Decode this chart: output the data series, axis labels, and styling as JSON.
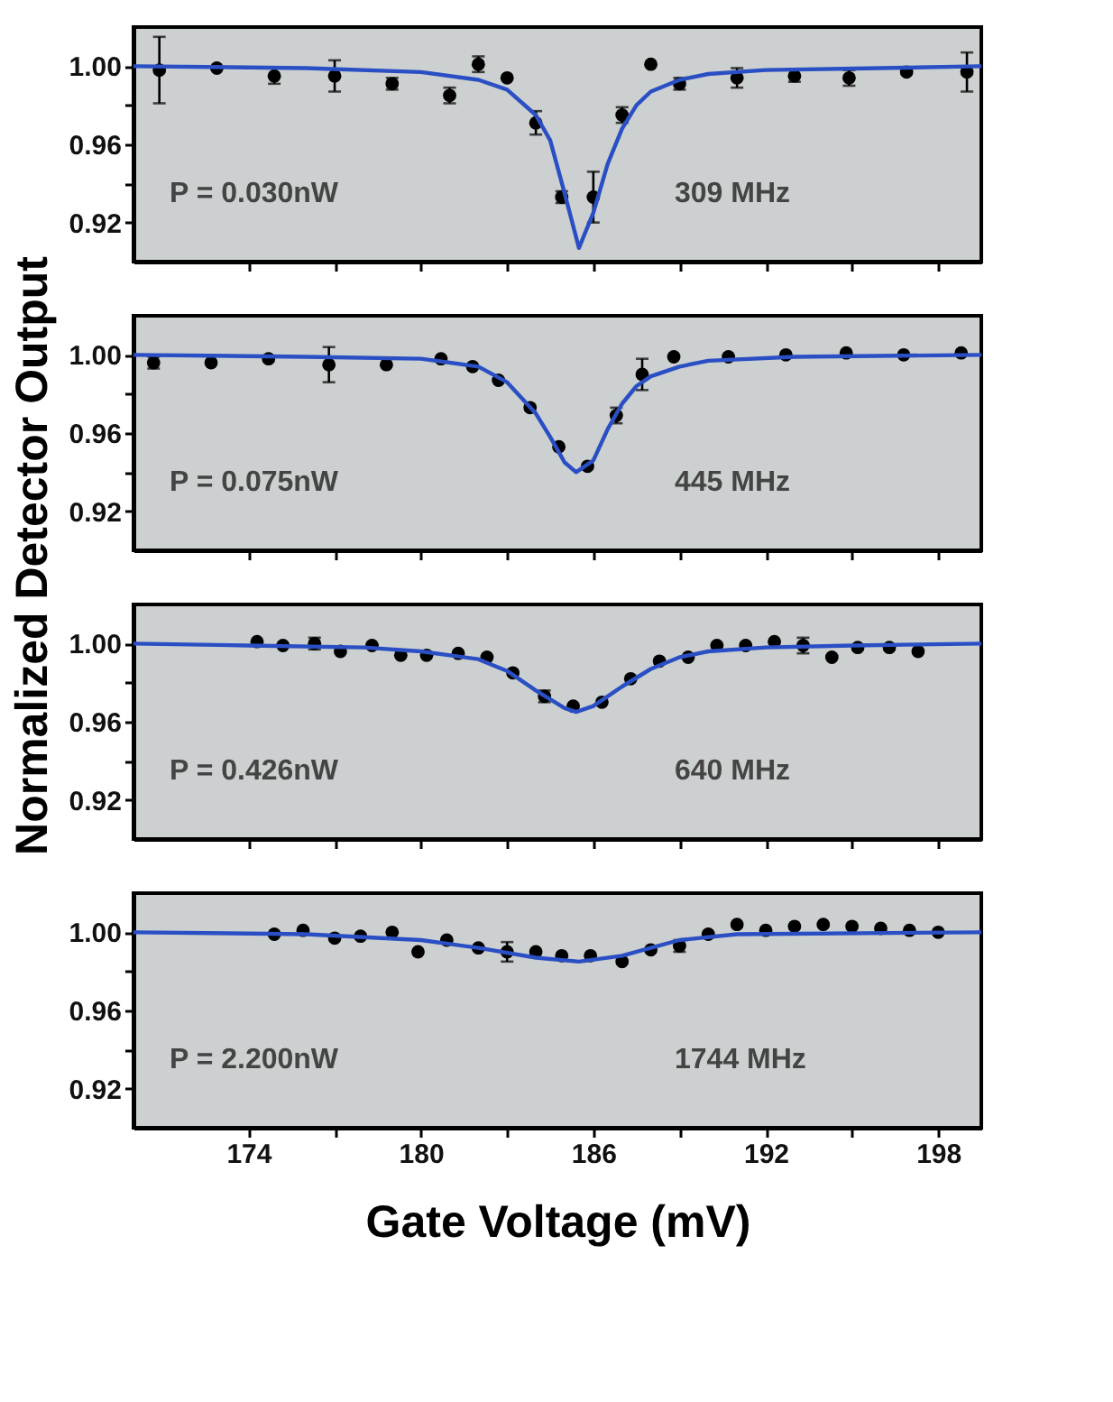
{
  "chart_data": [
    {
      "type": "scatter",
      "ylabel": "Normalized Detector Output",
      "annotations": [
        "P = 0.030nW",
        "309 MHz"
      ],
      "xlim": [
        170,
        199.5
      ],
      "ylim": [
        0.9,
        1.02
      ],
      "xticks": [
        {
          "value": 174,
          "label": null
        },
        {
          "value": 177,
          "label": null
        },
        {
          "value": 180,
          "label": null
        },
        {
          "value": 183,
          "label": null
        },
        {
          "value": 186,
          "label": null
        },
        {
          "value": 189,
          "label": null
        },
        {
          "value": 192,
          "label": null
        },
        {
          "value": 195,
          "label": null
        },
        {
          "value": 198,
          "label": null
        }
      ],
      "yticks": [
        {
          "value": 0.92,
          "label": "0.92"
        },
        {
          "value": 0.94,
          "label": null
        },
        {
          "value": 0.96,
          "label": "0.96"
        },
        {
          "value": 0.98,
          "label": null
        },
        {
          "value": 1.0,
          "label": "1.00"
        }
      ],
      "tick_labels": "y",
      "grid": false,
      "series": [
        {
          "type": "scatter",
          "color": "#000000",
          "marker": "circle",
          "x": [
            170.9,
            172.9,
            174.9,
            177.0,
            179.0,
            181.0,
            182.0,
            183.0,
            184.0,
            184.9,
            186.0,
            187.0,
            188.0,
            189.0,
            191.0,
            193.0,
            194.9,
            196.9,
            199.0
          ],
          "values": [
            0.998,
            0.999,
            0.995,
            0.995,
            0.991,
            0.985,
            1.001,
            0.994,
            0.971,
            0.933,
            0.933,
            0.975,
            1.001,
            0.991,
            0.994,
            0.995,
            0.994,
            0.997,
            0.997
          ],
          "errors": [
            0.017,
            null,
            0.004,
            0.008,
            0.003,
            0.004,
            0.004,
            null,
            0.006,
            0.003,
            0.013,
            0.004,
            null,
            0.003,
            0.005,
            0.003,
            0.004,
            null,
            0.01
          ]
        },
        {
          "type": "line",
          "color": "#2a4fc4",
          "line_style": "solid",
          "marker": "none",
          "x": [
            170,
            176,
            180,
            182,
            183,
            184,
            184.5,
            185,
            185.5,
            186,
            186.5,
            187,
            187.5,
            188,
            189,
            190,
            192,
            196,
            199.5
          ],
          "values": [
            1.0,
            0.999,
            0.997,
            0.993,
            0.988,
            0.975,
            0.962,
            0.935,
            0.907,
            0.925,
            0.95,
            0.968,
            0.98,
            0.987,
            0.993,
            0.996,
            0.998,
            0.999,
            1.0
          ]
        }
      ]
    },
    {
      "type": "scatter",
      "annotations": [
        "P = 0.075nW",
        "445 MHz"
      ],
      "xlim": [
        170,
        199.5
      ],
      "ylim": [
        0.9,
        1.02
      ],
      "xticks": [
        {
          "value": 174,
          "label": null
        },
        {
          "value": 177,
          "label": null
        },
        {
          "value": 180,
          "label": null
        },
        {
          "value": 183,
          "label": null
        },
        {
          "value": 186,
          "label": null
        },
        {
          "value": 189,
          "label": null
        },
        {
          "value": 192,
          "label": null
        },
        {
          "value": 195,
          "label": null
        },
        {
          "value": 198,
          "label": null
        }
      ],
      "yticks": [
        {
          "value": 0.92,
          "label": "0.92"
        },
        {
          "value": 0.94,
          "label": null
        },
        {
          "value": 0.96,
          "label": "0.96"
        },
        {
          "value": 0.98,
          "label": null
        },
        {
          "value": 1.0,
          "label": "1.00"
        }
      ],
      "tick_labels": "y",
      "grid": false,
      "series": [
        {
          "type": "scatter",
          "color": "#000000",
          "marker": "circle",
          "x": [
            170.7,
            172.7,
            174.7,
            176.8,
            178.8,
            180.7,
            181.8,
            182.7,
            183.8,
            184.8,
            185.8,
            186.8,
            187.7,
            188.8,
            190.7,
            192.7,
            194.8,
            196.8,
            198.8
          ],
          "values": [
            0.996,
            0.996,
            0.998,
            0.995,
            0.995,
            0.998,
            0.994,
            0.987,
            0.973,
            0.953,
            0.943,
            0.969,
            0.99,
            0.999,
            0.999,
            1.0,
            1.001,
            1.0,
            1.001
          ],
          "errors": [
            0.003,
            null,
            null,
            0.009,
            null,
            null,
            null,
            null,
            null,
            null,
            null,
            0.004,
            0.008,
            null,
            null,
            null,
            null,
            null,
            null
          ]
        },
        {
          "type": "line",
          "color": "#2a4fc4",
          "line_style": "solid",
          "marker": "none",
          "x": [
            170,
            176,
            180,
            182,
            183,
            184,
            184.5,
            185,
            185.4,
            186,
            186.5,
            187,
            187.5,
            188,
            189,
            190,
            193,
            199.5
          ],
          "values": [
            1.0,
            0.999,
            0.998,
            0.994,
            0.986,
            0.97,
            0.958,
            0.945,
            0.94,
            0.946,
            0.962,
            0.975,
            0.984,
            0.989,
            0.994,
            0.997,
            0.999,
            1.0
          ]
        }
      ]
    },
    {
      "type": "scatter",
      "annotations": [
        "P = 0.426nW",
        "640 MHz"
      ],
      "xlim": [
        170,
        199.5
      ],
      "ylim": [
        0.9,
        1.02
      ],
      "xticks": [
        {
          "value": 174,
          "label": null
        },
        {
          "value": 177,
          "label": null
        },
        {
          "value": 180,
          "label": null
        },
        {
          "value": 183,
          "label": null
        },
        {
          "value": 186,
          "label": null
        },
        {
          "value": 189,
          "label": null
        },
        {
          "value": 192,
          "label": null
        },
        {
          "value": 195,
          "label": null
        },
        {
          "value": 198,
          "label": null
        }
      ],
      "yticks": [
        {
          "value": 0.92,
          "label": "0.92"
        },
        {
          "value": 0.94,
          "label": null
        },
        {
          "value": 0.96,
          "label": "0.96"
        },
        {
          "value": 0.98,
          "label": null
        },
        {
          "value": 1.0,
          "label": "1.00"
        }
      ],
      "tick_labels": "y",
      "grid": false,
      "series": [
        {
          "type": "scatter",
          "color": "#000000",
          "marker": "circle",
          "x": [
            174.3,
            175.2,
            176.3,
            177.2,
            178.3,
            179.3,
            180.2,
            181.3,
            182.3,
            183.2,
            184.3,
            185.3,
            186.3,
            187.3,
            188.3,
            189.3,
            190.3,
            191.3,
            192.3,
            193.3,
            194.3,
            195.2,
            196.3,
            197.3
          ],
          "values": [
            1.001,
            0.999,
            1.0,
            0.996,
            0.999,
            0.994,
            0.994,
            0.995,
            0.993,
            0.985,
            0.973,
            0.968,
            0.97,
            0.982,
            0.991,
            0.993,
            0.999,
            0.999,
            1.001,
            0.999,
            0.993,
            0.998,
            0.998,
            0.996
          ],
          "errors": [
            null,
            null,
            0.003,
            null,
            null,
            null,
            null,
            null,
            null,
            null,
            0.003,
            null,
            null,
            null,
            null,
            null,
            null,
            null,
            null,
            0.004,
            null,
            null,
            null,
            null
          ]
        },
        {
          "type": "line",
          "color": "#2a4fc4",
          "line_style": "solid",
          "marker": "none",
          "x": [
            170,
            174,
            178,
            180,
            182,
            183,
            184,
            185,
            185.4,
            186,
            187,
            188,
            189,
            190,
            192,
            195,
            199.5
          ],
          "values": [
            1.0,
            0.999,
            0.998,
            0.996,
            0.992,
            0.986,
            0.976,
            0.967,
            0.965,
            0.968,
            0.978,
            0.987,
            0.993,
            0.996,
            0.998,
            0.999,
            1.0
          ]
        }
      ]
    },
    {
      "type": "scatter",
      "xlabel": "Gate Voltage (mV)",
      "annotations": [
        "P = 2.200nW",
        "1744 MHz"
      ],
      "xlim": [
        170,
        199.5
      ],
      "ylim": [
        0.9,
        1.02
      ],
      "xticks": [
        {
          "value": 174,
          "label": "174"
        },
        {
          "value": 177,
          "label": null
        },
        {
          "value": 180,
          "label": "180"
        },
        {
          "value": 183,
          "label": null
        },
        {
          "value": 186,
          "label": "186"
        },
        {
          "value": 189,
          "label": null
        },
        {
          "value": 192,
          "label": "192"
        },
        {
          "value": 195,
          "label": null
        },
        {
          "value": 198,
          "label": "198"
        }
      ],
      "yticks": [
        {
          "value": 0.92,
          "label": "0.92"
        },
        {
          "value": 0.94,
          "label": null
        },
        {
          "value": 0.96,
          "label": "0.96"
        },
        {
          "value": 0.98,
          "label": null
        },
        {
          "value": 1.0,
          "label": "1.00"
        }
      ],
      "grid": false,
      "series": [
        {
          "type": "scatter",
          "color": "#000000",
          "marker": "circle",
          "x": [
            174.9,
            175.9,
            177.0,
            177.9,
            179.0,
            179.9,
            180.9,
            182.0,
            183.0,
            184.0,
            184.9,
            185.9,
            187.0,
            188.0,
            189.0,
            190.0,
            191.0,
            192.0,
            193.0,
            194.0,
            195.0,
            196.0,
            197.0,
            198.0
          ],
          "values": [
            0.999,
            1.001,
            0.997,
            0.998,
            1.0,
            0.99,
            0.996,
            0.992,
            0.99,
            0.99,
            0.988,
            0.988,
            0.985,
            0.991,
            0.993,
            0.999,
            1.004,
            1.001,
            1.003,
            1.004,
            1.003,
            1.002,
            1.001,
            1.0
          ],
          "errors": [
            null,
            null,
            null,
            null,
            null,
            null,
            null,
            null,
            0.005,
            null,
            null,
            null,
            null,
            null,
            0.003,
            null,
            null,
            null,
            null,
            null,
            null,
            null,
            null,
            null
          ]
        },
        {
          "type": "line",
          "color": "#2a4fc4",
          "line_style": "solid",
          "marker": "none",
          "x": [
            170,
            176,
            180,
            182,
            184,
            185.5,
            187,
            188,
            189,
            191,
            199.5
          ],
          "values": [
            1.0,
            0.999,
            0.996,
            0.992,
            0.987,
            0.985,
            0.988,
            0.992,
            0.996,
            0.999,
            1.0
          ]
        }
      ]
    }
  ]
}
